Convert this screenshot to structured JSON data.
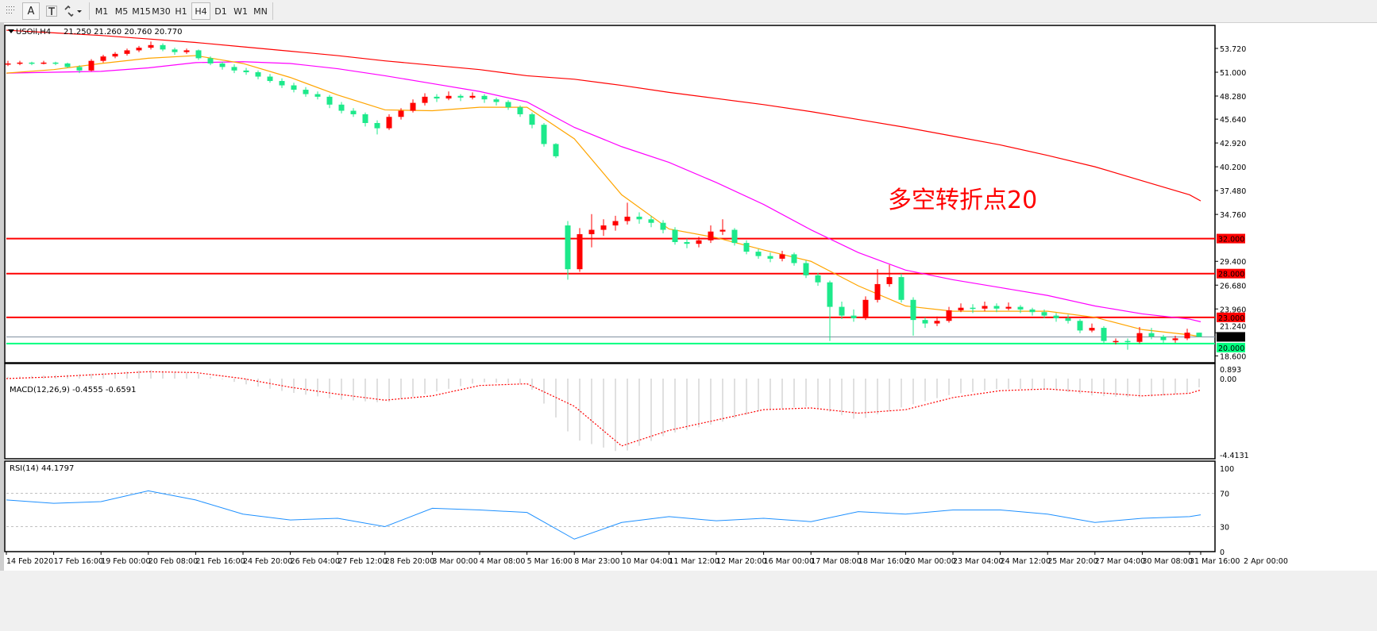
{
  "toolbar": {
    "buttons": [
      "A"
    ],
    "timeframes": [
      "M1",
      "M5",
      "M15",
      "M30",
      "H1",
      "H4",
      "D1",
      "W1",
      "MN"
    ],
    "active_timeframe": "H4"
  },
  "chart_header": {
    "symbol": "USOil,H4",
    "ohlc": "21.250 21.260 20.760 20.770"
  },
  "annotation": "多空转折点20",
  "colors": {
    "bull": "#ff0000",
    "bear": "#1de98b",
    "ma_slow": "#ff0000",
    "ma_mid": "#ff00ff",
    "ma_fast": "#ffa500",
    "level": "#ff0000",
    "support": "#00ff7f",
    "rsi": "#1e90ff",
    "macd_hist": "#c0c0c0",
    "macd_signal": "#ff0000"
  },
  "chart_data": [
    {
      "type": "candlestick",
      "title": "USOil,H4",
      "ylim": [
        18.6,
        55.8
      ],
      "price_ticks": [
        "53.720",
        "51.000",
        "48.280",
        "45.640",
        "42.920",
        "40.200",
        "37.480",
        "34.760",
        "29.400",
        "26.680",
        "23.960",
        "21.240",
        "18.600"
      ],
      "levels": [
        {
          "value": 32.0,
          "label": "32.000",
          "kind": "resistance"
        },
        {
          "value": 28.0,
          "label": "28.000",
          "kind": "resistance"
        },
        {
          "value": 23.0,
          "label": "23.000",
          "kind": "resistance"
        },
        {
          "value": 20.0,
          "label": "20.000",
          "kind": "support"
        }
      ],
      "current_price": {
        "value": 20.77,
        "label": "20.770"
      },
      "time_labels": [
        "14 Feb 2020",
        "17 Feb 16:00",
        "19 Feb 00:00",
        "20 Feb 08:00",
        "21 Feb 16:00",
        "24 Feb 20:00",
        "26 Feb 04:00",
        "27 Feb 12:00",
        "28 Feb 20:00",
        "3 Mar 00:00",
        "4 Mar 08:00",
        "5 Mar 16:00",
        "8 Mar 23:00",
        "10 Mar 04:00",
        "11 Mar 12:00",
        "12 Mar 20:00",
        "16 Mar 00:00",
        "17 Mar 08:00",
        "18 Mar 16:00",
        "20 Mar 00:00",
        "23 Mar 04:00",
        "24 Mar 12:00",
        "25 Mar 20:00",
        "27 Mar 04:00",
        "30 Mar 08:00",
        "31 Mar 16:00",
        "2 Apr 00:00"
      ],
      "candles_ohlc": [
        [
          51.9,
          52.3,
          51.7,
          52.0
        ],
        [
          52.0,
          52.3,
          51.8,
          52.1
        ],
        [
          52.1,
          52.2,
          51.8,
          52.0
        ],
        [
          52.0,
          52.3,
          51.9,
          52.1
        ],
        [
          52.1,
          52.2,
          51.8,
          52.0
        ],
        [
          52.0,
          52.1,
          51.5,
          51.6
        ],
        [
          51.6,
          51.8,
          50.9,
          51.2
        ],
        [
          51.2,
          52.5,
          51.1,
          52.3
        ],
        [
          52.3,
          53.0,
          52.1,
          52.8
        ],
        [
          52.8,
          53.3,
          52.6,
          53.1
        ],
        [
          53.1,
          53.7,
          52.9,
          53.5
        ],
        [
          53.5,
          54.0,
          53.3,
          53.8
        ],
        [
          53.8,
          54.5,
          53.6,
          54.1
        ],
        [
          54.1,
          54.3,
          53.4,
          53.6
        ],
        [
          53.6,
          53.8,
          53.0,
          53.3
        ],
        [
          53.3,
          53.7,
          53.1,
          53.5
        ],
        [
          53.5,
          53.6,
          52.4,
          52.6
        ],
        [
          52.6,
          52.8,
          51.8,
          52.0
        ],
        [
          52.0,
          52.2,
          51.3,
          51.6
        ],
        [
          51.6,
          51.9,
          50.9,
          51.2
        ],
        [
          51.2,
          51.5,
          50.7,
          51.0
        ],
        [
          51.0,
          51.2,
          50.2,
          50.5
        ],
        [
          50.5,
          50.8,
          49.8,
          50.0
        ],
        [
          50.0,
          50.3,
          49.2,
          49.5
        ],
        [
          49.5,
          49.8,
          48.7,
          49.0
        ],
        [
          49.0,
          49.3,
          48.2,
          48.5
        ],
        [
          48.5,
          48.8,
          47.9,
          48.2
        ],
        [
          48.2,
          48.4,
          46.9,
          47.3
        ],
        [
          47.3,
          47.6,
          46.3,
          46.6
        ],
        [
          46.6,
          46.9,
          45.9,
          46.2
        ],
        [
          46.2,
          46.4,
          44.8,
          45.2
        ],
        [
          45.2,
          45.5,
          43.9,
          44.6
        ],
        [
          44.6,
          46.2,
          44.4,
          45.9
        ],
        [
          45.9,
          46.9,
          45.6,
          46.6
        ],
        [
          46.6,
          47.9,
          46.4,
          47.5
        ],
        [
          47.5,
          48.6,
          47.2,
          48.2
        ],
        [
          48.2,
          48.5,
          47.6,
          48.0
        ],
        [
          48.0,
          48.8,
          47.8,
          48.3
        ],
        [
          48.3,
          48.5,
          47.7,
          48.1
        ],
        [
          48.1,
          48.7,
          47.9,
          48.3
        ],
        [
          48.3,
          48.5,
          47.5,
          47.9
        ],
        [
          47.9,
          48.1,
          47.2,
          47.6
        ],
        [
          47.6,
          47.8,
          46.7,
          47.0
        ],
        [
          47.0,
          47.2,
          45.9,
          46.2
        ],
        [
          46.2,
          46.4,
          44.6,
          45.0
        ],
        [
          45.0,
          45.2,
          42.5,
          42.8
        ],
        [
          42.8,
          42.9,
          41.2,
          41.4
        ],
        [
          33.5,
          34.0,
          27.3,
          28.5
        ],
        [
          28.5,
          33.2,
          28.2,
          32.5
        ],
        [
          32.5,
          34.8,
          31.0,
          33.0
        ],
        [
          33.0,
          34.2,
          32.3,
          33.5
        ],
        [
          33.5,
          34.6,
          32.9,
          34.0
        ],
        [
          34.0,
          36.1,
          33.6,
          34.5
        ],
        [
          34.5,
          35.0,
          33.7,
          34.2
        ],
        [
          34.2,
          34.6,
          33.3,
          33.8
        ],
        [
          33.8,
          34.1,
          32.6,
          33.0
        ],
        [
          33.0,
          33.3,
          31.3,
          31.6
        ],
        [
          31.6,
          32.0,
          30.9,
          31.4
        ],
        [
          31.4,
          32.2,
          31.0,
          31.8
        ],
        [
          31.8,
          33.5,
          31.5,
          32.8
        ],
        [
          32.8,
          34.2,
          32.4,
          33.0
        ],
        [
          33.0,
          33.2,
          31.2,
          31.5
        ],
        [
          31.5,
          31.8,
          30.2,
          30.5
        ],
        [
          30.5,
          30.8,
          29.7,
          30.0
        ],
        [
          30.0,
          30.4,
          29.3,
          29.7
        ],
        [
          29.7,
          30.6,
          29.4,
          30.2
        ],
        [
          30.2,
          30.4,
          28.9,
          29.2
        ],
        [
          29.2,
          29.5,
          27.5,
          27.8
        ],
        [
          27.8,
          28.1,
          26.6,
          27.0
        ],
        [
          27.0,
          27.2,
          20.3,
          24.2
        ],
        [
          24.2,
          24.8,
          22.8,
          23.2
        ],
        [
          23.2,
          23.9,
          22.5,
          22.9
        ],
        [
          22.9,
          25.4,
          22.7,
          25.0
        ],
        [
          25.0,
          28.5,
          24.7,
          26.8
        ],
        [
          26.8,
          29.0,
          26.5,
          27.6
        ],
        [
          27.6,
          28.0,
          24.7,
          25.0
        ],
        [
          25.0,
          25.3,
          20.9,
          22.7
        ],
        [
          22.7,
          23.0,
          21.8,
          22.3
        ],
        [
          22.3,
          23.1,
          22.0,
          22.6
        ],
        [
          22.6,
          24.2,
          22.4,
          23.8
        ],
        [
          23.8,
          24.6,
          23.6,
          24.1
        ],
        [
          24.1,
          24.5,
          23.5,
          24.0
        ],
        [
          24.0,
          24.8,
          23.7,
          24.3
        ],
        [
          24.3,
          24.6,
          23.6,
          24.0
        ],
        [
          24.0,
          24.7,
          23.8,
          24.2
        ],
        [
          24.2,
          24.4,
          23.5,
          23.9
        ],
        [
          23.9,
          24.1,
          23.2,
          23.6
        ],
        [
          23.6,
          23.9,
          22.9,
          23.2
        ],
        [
          23.2,
          23.5,
          22.5,
          22.9
        ],
        [
          22.9,
          23.3,
          22.3,
          22.6
        ],
        [
          22.6,
          22.8,
          21.2,
          21.5
        ],
        [
          21.5,
          22.3,
          21.3,
          21.8
        ],
        [
          21.8,
          22.0,
          20.0,
          20.3
        ],
        [
          20.3,
          20.6,
          19.9,
          20.3
        ],
        [
          20.3,
          20.6,
          19.3,
          20.2
        ],
        [
          20.2,
          21.9,
          20.0,
          21.2
        ],
        [
          21.2,
          21.8,
          20.5,
          20.8
        ],
        [
          20.8,
          21.0,
          20.1,
          20.4
        ],
        [
          20.4,
          20.9,
          20.1,
          20.6
        ],
        [
          20.6,
          21.7,
          20.4,
          21.25
        ],
        [
          21.25,
          21.26,
          20.76,
          20.77
        ]
      ],
      "moving_averages_at_time_labels": {
        "slow_red": [
          55.8,
          55.5,
          55.2,
          54.8,
          54.4,
          53.9,
          53.4,
          52.9,
          52.3,
          51.8,
          51.3,
          50.6,
          50.2,
          49.5,
          48.7,
          48.0,
          47.3,
          46.5,
          45.6,
          44.7,
          43.7,
          42.7,
          41.5,
          40.2,
          38.6,
          37.0,
          36.3
        ],
        "mid_magenta": [
          50.9,
          51.0,
          51.1,
          51.5,
          52.1,
          52.2,
          52.0,
          51.4,
          50.6,
          49.7,
          48.8,
          47.6,
          44.7,
          42.5,
          40.7,
          38.4,
          35.9,
          33.0,
          30.4,
          28.4,
          27.3,
          26.4,
          25.5,
          24.3,
          23.4,
          22.8,
          22.5
        ],
        "fast_orange": [
          50.9,
          51.3,
          52.0,
          52.6,
          52.9,
          52.0,
          50.4,
          48.4,
          46.7,
          46.6,
          47.0,
          47.0,
          43.4,
          37.0,
          33.1,
          32.1,
          30.7,
          29.4,
          26.6,
          24.3,
          23.7,
          23.7,
          23.7,
          23.0,
          21.6,
          21.0,
          20.8
        ]
      }
    },
    {
      "type": "bar",
      "title": "MACD(12,26,9) -0.4555 -0.6591",
      "ylim": [
        -4.4131,
        0.893
      ],
      "ticks": [
        "0.893",
        "0.00",
        "-4.4131"
      ],
      "macd_at_time_labels": [
        0.1,
        0.2,
        0.3,
        0.5,
        0.3,
        -0.3,
        -0.8,
        -1.2,
        -1.4,
        -0.8,
        -0.2,
        -0.3,
        -3.5,
        -4.3,
        -3.2,
        -2.6,
        -1.8,
        -1.6,
        -2.4,
        -1.6,
        -0.9,
        -0.6,
        -0.6,
        -1.0,
        -1.1,
        -0.8,
        -0.4555
      ],
      "signal_at_time_labels": [
        0.0,
        0.1,
        0.25,
        0.4,
        0.35,
        0.0,
        -0.5,
        -0.9,
        -1.25,
        -1.0,
        -0.4,
        -0.3,
        -1.6,
        -3.9,
        -3.0,
        -2.4,
        -1.8,
        -1.7,
        -2.0,
        -1.8,
        -1.1,
        -0.7,
        -0.6,
        -0.8,
        -1.0,
        -0.85,
        -0.6591
      ]
    },
    {
      "type": "line",
      "title": "RSI(14) 44.1797",
      "ylim": [
        0,
        100
      ],
      "ticks": [
        "100",
        "70",
        "30",
        "0"
      ],
      "levels": [
        70,
        30
      ],
      "rsi_at_time_labels": [
        62,
        58,
        60,
        73,
        62,
        45,
        38,
        40,
        30,
        52,
        50,
        47,
        15,
        35,
        42,
        37,
        40,
        36,
        48,
        45,
        50,
        50,
        45,
        35,
        40,
        42,
        44.1797
      ]
    }
  ]
}
